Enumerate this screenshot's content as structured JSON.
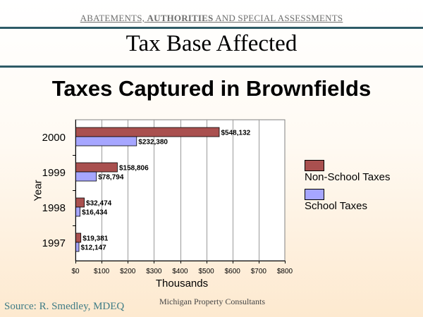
{
  "header": {
    "segment_1": "ABATEMENTS, ",
    "segment_2": "AUTHORITIES",
    "segment_3": " AND SPECIAL ASSESSMENTS"
  },
  "slide": {
    "subtitle": "Tax Base Affected",
    "source": "Source: R. Smedley, MDEQ",
    "consultant": "Michigan Property Consultants"
  },
  "colors": {
    "non_school": "#a9504f",
    "school": "#a6a6ff",
    "rule": "#2e5b66",
    "source_text": "#3f7c86"
  },
  "chart_data": {
    "type": "bar",
    "orientation": "horizontal",
    "title": "Taxes Captured in Brownfields",
    "xlabel": "Thousands",
    "ylabel": "Year",
    "categories": [
      "2000",
      "1999",
      "1998",
      "1997"
    ],
    "xlim": [
      0,
      800
    ],
    "xticks": [
      0,
      100,
      200,
      300,
      400,
      500,
      600,
      700,
      800
    ],
    "xtick_labels": [
      "$0",
      "$100",
      "$200",
      "$300",
      "$400",
      "$500",
      "$600",
      "$700",
      "$800"
    ],
    "grid": true,
    "legend_position": "right",
    "series": [
      {
        "name": "Non-School Taxes",
        "color": "#a9504f",
        "values": [
          548.132,
          158.806,
          32.474,
          19.381
        ],
        "labels": [
          "$548,132",
          "$158,806",
          "$32,474",
          "$19,381"
        ]
      },
      {
        "name": "School Taxes",
        "color": "#a6a6ff",
        "values": [
          232.38,
          78.794,
          16.434,
          12.147
        ],
        "labels": [
          "$232,380",
          "$78,794",
          "$16,434",
          "$12,147"
        ]
      }
    ]
  }
}
